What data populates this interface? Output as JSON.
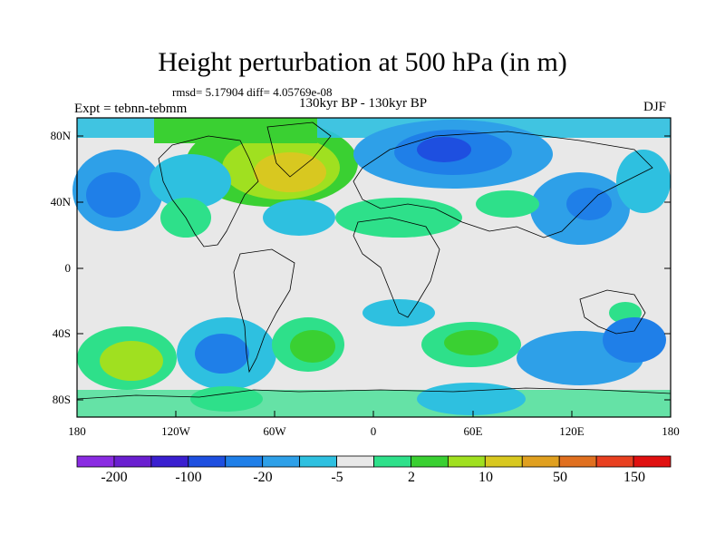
{
  "title": "Height perturbation at 500 hPa (in m)",
  "stats": "rmsd= 5.17904 diff= 4.05769e-08",
  "experiment": "Expt = tebnn-tebmm",
  "period": "130kyr BP - 130kyr BP",
  "season": "DJF",
  "map": {
    "y_ticks": [
      "80N",
      "40N",
      "0",
      "40S",
      "80S"
    ],
    "x_ticks": [
      "180",
      "120W",
      "60W",
      "0",
      "60E",
      "120E",
      "180"
    ],
    "colors": {
      "background_fill": "#e8e8e8",
      "coast": "#000000"
    }
  },
  "colorbar": {
    "colors": [
      "#8a2be2",
      "#6a1fd0",
      "#3a1fd0",
      "#1e4fe0",
      "#1f7fe8",
      "#2ea0e8",
      "#2ec0e0",
      "#e8e8e8",
      "#2ee08a",
      "#3ad032",
      "#a0e020",
      "#d8c820",
      "#e0a020",
      "#e07020",
      "#e84020",
      "#e01010"
    ],
    "labels": [
      "-200",
      "-100",
      "-20",
      "-5",
      "2",
      "10",
      "50",
      "150"
    ]
  }
}
